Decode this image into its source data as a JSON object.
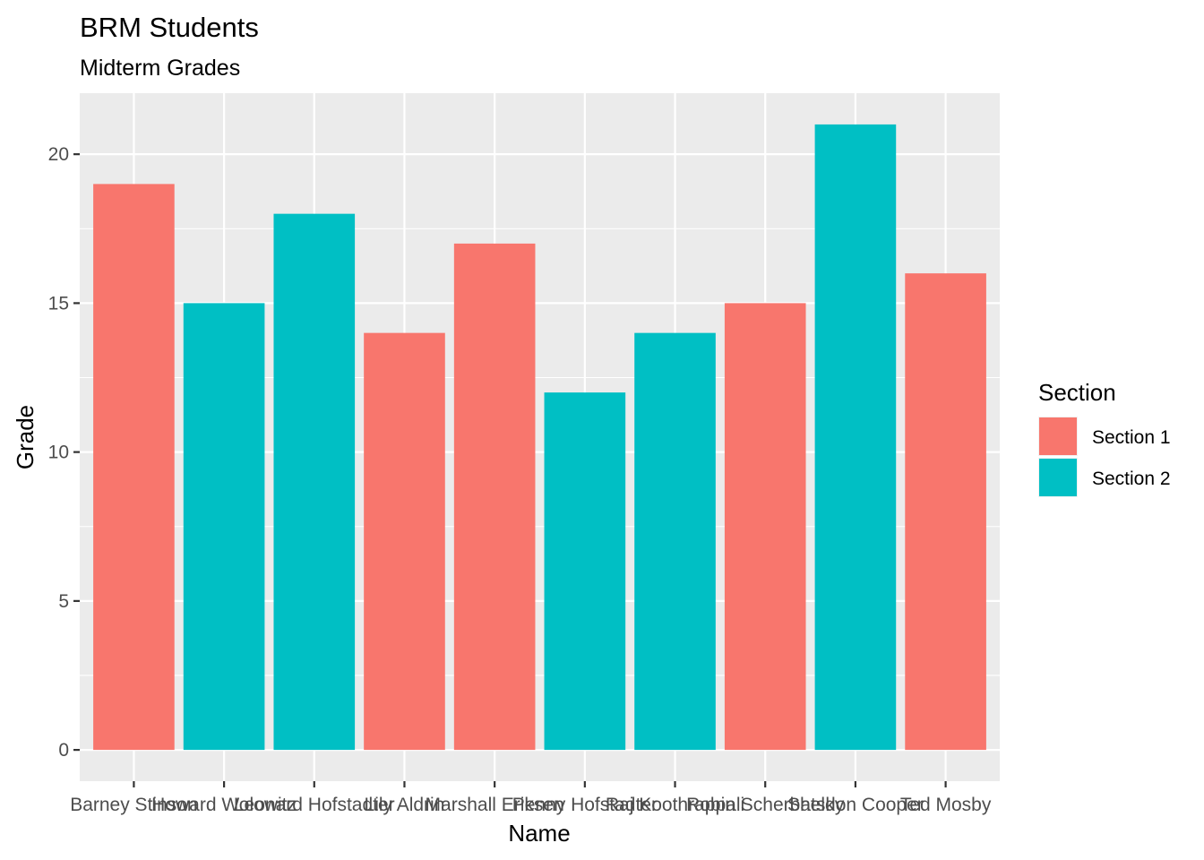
{
  "chart_data": {
    "type": "bar",
    "title": "BRM Students",
    "subtitle": "Midterm Grades",
    "xlabel": "Name",
    "ylabel": "Grade",
    "ylim": [
      -1.05,
      22.05
    ],
    "yticks": [
      0,
      5,
      10,
      15,
      20
    ],
    "grid": true,
    "legend": {
      "title": "Section",
      "position": "right"
    },
    "categories": [
      "Barney Stinson",
      "Howard Wolowitz",
      "Leonard Hofstadter",
      "Lily Aldrin",
      "Marshall Eriksen",
      "Penny Hofstadter",
      "Raj Koothrappali",
      "Robin Scherbatsky",
      "Sheldon Cooper",
      "Ted Mosby"
    ],
    "values": [
      19,
      15,
      18,
      14,
      17,
      12,
      14,
      15,
      21,
      16
    ],
    "groups": [
      "Section 1",
      "Section 2",
      "Section 2",
      "Section 1",
      "Section 1",
      "Section 2",
      "Section 2",
      "Section 1",
      "Section 2",
      "Section 1"
    ],
    "series": [
      {
        "name": "Section 1",
        "color": "#F8766D"
      },
      {
        "name": "Section 2",
        "color": "#00BFC4"
      }
    ]
  },
  "colors": {
    "panel": "#EBEBEB",
    "grid_major": "#FFFFFF",
    "tick": "#333333"
  }
}
